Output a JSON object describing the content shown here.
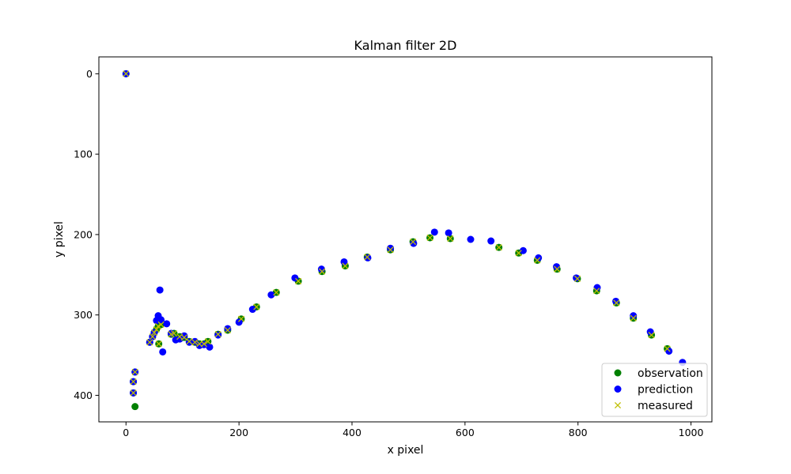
{
  "chart_data": {
    "type": "scatter",
    "title": "Kalman filter 2D",
    "xlabel": "x pixel",
    "ylabel": "y pixel",
    "xlim": [
      -48,
      1037
    ],
    "ylim": [
      433,
      -21
    ],
    "y_inverted": true,
    "x_ticks": [
      0,
      200,
      400,
      600,
      800,
      1000
    ],
    "y_ticks": [
      0,
      100,
      200,
      300,
      400
    ],
    "grid": false,
    "legend_position": "lower right",
    "series": [
      {
        "name": "observation",
        "marker": "circle",
        "color": "#008000",
        "points": [
          [
            0,
            0
          ],
          [
            16,
            371
          ],
          [
            13,
            383
          ],
          [
            13,
            397
          ],
          [
            16,
            414
          ],
          [
            42,
            334
          ],
          [
            47,
            327
          ],
          [
            50,
            322
          ],
          [
            54,
            318
          ],
          [
            57,
            314
          ],
          [
            62,
            312
          ],
          [
            58,
            336
          ],
          [
            80,
            324
          ],
          [
            85,
            323
          ],
          [
            95,
            327
          ],
          [
            103,
            328
          ],
          [
            112,
            333
          ],
          [
            122,
            334
          ],
          [
            130,
            336
          ],
          [
            138,
            336
          ],
          [
            145,
            333
          ],
          [
            163,
            324
          ],
          [
            180,
            319
          ],
          [
            204,
            305
          ],
          [
            231,
            290
          ],
          [
            266,
            272
          ],
          [
            305,
            258
          ],
          [
            347,
            246
          ],
          [
            388,
            239
          ],
          [
            427,
            228
          ],
          [
            468,
            219
          ],
          [
            508,
            209
          ],
          [
            538,
            204
          ],
          [
            574,
            205
          ],
          [
            660,
            216
          ],
          [
            695,
            223
          ],
          [
            728,
            232
          ],
          [
            763,
            243
          ],
          [
            799,
            255
          ],
          [
            833,
            270
          ],
          [
            868,
            285
          ],
          [
            898,
            304
          ],
          [
            930,
            325
          ],
          [
            958,
            342
          ]
        ]
      },
      {
        "name": "prediction",
        "marker": "circle",
        "color": "#0000ff",
        "points": [
          [
            0,
            0
          ],
          [
            16,
            371
          ],
          [
            13,
            383
          ],
          [
            13,
            397
          ],
          [
            42,
            334
          ],
          [
            47,
            327
          ],
          [
            50,
            322
          ],
          [
            54,
            307
          ],
          [
            57,
            301
          ],
          [
            60,
            269
          ],
          [
            62,
            306
          ],
          [
            65,
            346
          ],
          [
            72,
            311
          ],
          [
            80,
            323
          ],
          [
            88,
            331
          ],
          [
            95,
            330
          ],
          [
            103,
            326
          ],
          [
            112,
            334
          ],
          [
            122,
            333
          ],
          [
            130,
            338
          ],
          [
            138,
            337
          ],
          [
            148,
            340
          ],
          [
            163,
            325
          ],
          [
            180,
            317
          ],
          [
            200,
            309
          ],
          [
            224,
            293
          ],
          [
            257,
            275
          ],
          [
            299,
            254
          ],
          [
            346,
            243
          ],
          [
            386,
            234
          ],
          [
            428,
            229
          ],
          [
            468,
            217
          ],
          [
            509,
            211
          ],
          [
            546,
            197
          ],
          [
            571,
            198
          ],
          [
            610,
            206
          ],
          [
            646,
            208
          ],
          [
            703,
            220
          ],
          [
            730,
            229
          ],
          [
            762,
            240
          ],
          [
            797,
            254
          ],
          [
            834,
            266
          ],
          [
            867,
            283
          ],
          [
            898,
            301
          ],
          [
            928,
            321
          ],
          [
            961,
            345
          ],
          [
            985,
            359
          ]
        ]
      },
      {
        "name": "measured",
        "marker": "x",
        "color": "#bfbf00",
        "points": [
          [
            0,
            0
          ],
          [
            16,
            371
          ],
          [
            13,
            383
          ],
          [
            13,
            397
          ],
          [
            42,
            334
          ],
          [
            47,
            327
          ],
          [
            50,
            322
          ],
          [
            54,
            318
          ],
          [
            57,
            314
          ],
          [
            62,
            312
          ],
          [
            58,
            336
          ],
          [
            80,
            324
          ],
          [
            85,
            323
          ],
          [
            95,
            327
          ],
          [
            103,
            328
          ],
          [
            112,
            333
          ],
          [
            122,
            334
          ],
          [
            130,
            336
          ],
          [
            138,
            336
          ],
          [
            145,
            333
          ],
          [
            163,
            324
          ],
          [
            180,
            319
          ],
          [
            204,
            305
          ],
          [
            231,
            290
          ],
          [
            266,
            272
          ],
          [
            305,
            258
          ],
          [
            347,
            246
          ],
          [
            388,
            239
          ],
          [
            427,
            228
          ],
          [
            468,
            219
          ],
          [
            508,
            209
          ],
          [
            538,
            204
          ],
          [
            574,
            205
          ],
          [
            660,
            216
          ],
          [
            695,
            223
          ],
          [
            728,
            232
          ],
          [
            763,
            243
          ],
          [
            799,
            255
          ],
          [
            833,
            270
          ],
          [
            868,
            285
          ],
          [
            898,
            304
          ],
          [
            930,
            325
          ],
          [
            958,
            342
          ]
        ]
      }
    ]
  }
}
